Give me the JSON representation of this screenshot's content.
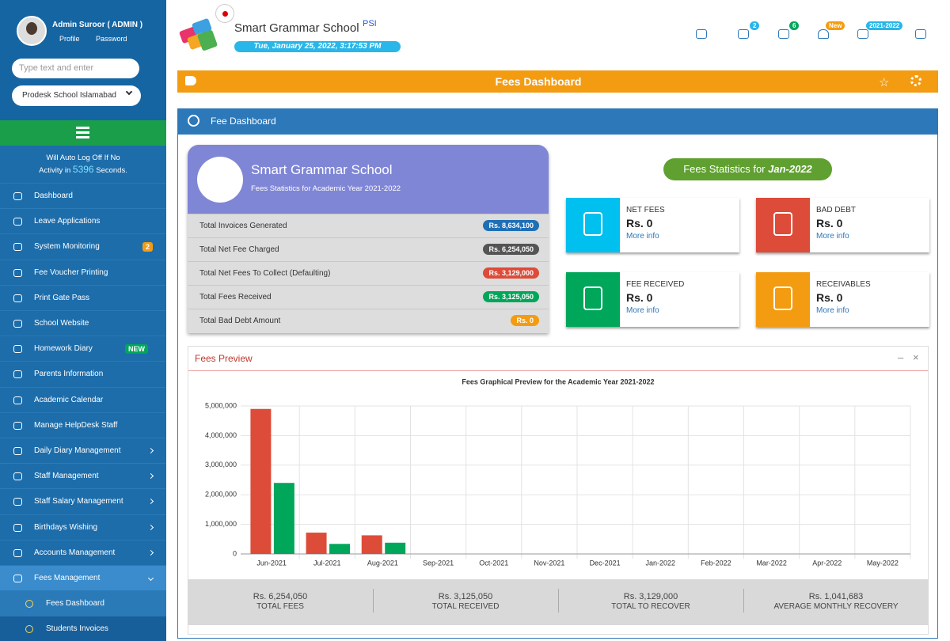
{
  "sidebar": {
    "user": {
      "name": "Admin Suroor ( ADMIN )",
      "profile": "Profile",
      "password": "Password"
    },
    "search_placeholder": "Type text and enter",
    "school_select": "Prodesk School Islamabad",
    "auto_logoff": {
      "line1": "Will Auto Log Off If No",
      "line2": "Activity in",
      "seconds": "5396",
      "line3": "Seconds."
    },
    "menu": [
      {
        "label": "Dashboard"
      },
      {
        "label": "Leave Applications"
      },
      {
        "label": "System Monitoring",
        "badge": "2",
        "badge_color": "#f39c12"
      },
      {
        "label": "Fee Voucher Printing"
      },
      {
        "label": "Print Gate Pass"
      },
      {
        "label": "School Website"
      },
      {
        "label": "Homework Diary",
        "badge": "NEW",
        "badge_color": "#00a65a"
      },
      {
        "label": "Parents Information"
      },
      {
        "label": "Academic Calendar"
      },
      {
        "label": "Manage HelpDesk Staff"
      },
      {
        "label": "Daily Diary Management",
        "expandable": true
      },
      {
        "label": "Staff Management",
        "expandable": true
      },
      {
        "label": "Staff Salary Management",
        "expandable": true
      },
      {
        "label": "Birthdays Wishing",
        "expandable": true
      },
      {
        "label": "Accounts Management",
        "expandable": true
      },
      {
        "label": "Fees Management",
        "expandable": true,
        "open": true
      }
    ],
    "submenu": [
      "Fees Dashboard",
      "Students Invoices"
    ]
  },
  "header": {
    "school": "Smart Grammar School",
    "tag": "PSI",
    "datetime": "Tue, January 25, 2022, 3:17:53 PM",
    "badges": [
      "2",
      "6",
      "New",
      "2021-2022"
    ]
  },
  "page_title": "Fees Dashboard",
  "panel_title": "Fee Dashboard",
  "summary_card": {
    "school": "Smart Grammar School",
    "subtitle": "Fees Statistics for Academic Year 2021-2022",
    "rows": [
      {
        "label": "Total Invoices Generated",
        "value": "Rs. 8,634,100",
        "color": "#1f6fb5"
      },
      {
        "label": "Total Net Fee Charged",
        "value": "Rs. 6,254,050",
        "color": "#555555"
      },
      {
        "label": "Total Net Fees To Collect (Defaulting)",
        "value": "Rs. 3,129,000",
        "color": "#dd4b39"
      },
      {
        "label": "Total Fees Received",
        "value": "Rs. 3,125,050",
        "color": "#00a65a"
      },
      {
        "label": "Total Bad Debt Amount",
        "value": "Rs. 0",
        "color": "#f39c12"
      }
    ]
  },
  "stats": {
    "heading": "Fees Statistics for",
    "period": "Jan-2022",
    "boxes": [
      {
        "label": "NET FEES",
        "value": "Rs. 0",
        "link": "More info",
        "color": "#00c0ef"
      },
      {
        "label": "BAD DEBT",
        "value": "Rs. 0",
        "link": "More info",
        "color": "#dd4b39"
      },
      {
        "label": "FEE RECEIVED",
        "value": "Rs. 0",
        "link": "More info",
        "color": "#00a65a"
      },
      {
        "label": "RECEIVABLES",
        "value": "Rs. 0",
        "link": "More info",
        "color": "#f39c12"
      }
    ]
  },
  "fees_preview": {
    "title": "Fees Preview",
    "totals": [
      {
        "value": "Rs. 6,254,050",
        "label": "TOTAL FEES"
      },
      {
        "value": "Rs. 3,125,050",
        "label": "TOTAL RECEIVED"
      },
      {
        "value": "Rs. 3,129,000",
        "label": "TOTAL TO RECOVER"
      },
      {
        "value": "Rs. 1,041,683",
        "label": "AVERAGE MONTHLY RECOVERY"
      }
    ]
  },
  "chart_data": {
    "type": "bar",
    "title": "Fees Graphical Preview for the Academic Year 2021-2022",
    "categories": [
      "Jun-2021",
      "Jul-2021",
      "Aug-2021",
      "Sep-2021",
      "Oct-2021",
      "Nov-2021",
      "Dec-2021",
      "Jan-2022",
      "Feb-2022",
      "Mar-2022",
      "Apr-2022",
      "May-2022"
    ],
    "series": [
      {
        "color": "#dd4b39",
        "values": [
          4900000,
          720000,
          630000,
          0,
          0,
          0,
          0,
          0,
          0,
          0,
          0,
          0
        ]
      },
      {
        "color": "#00a65a",
        "values": [
          2400000,
          340000,
          380000,
          0,
          0,
          0,
          0,
          0,
          0,
          0,
          0,
          0
        ]
      }
    ],
    "ylim": [
      0,
      5000000
    ],
    "yticks": [
      0,
      {
        "value": 1000000,
        "label": "1,000,000"
      },
      {
        "value": 2000000,
        "label": "2,000,000"
      },
      {
        "value": 3000000,
        "label": "3,000,000"
      },
      {
        "value": 4000000,
        "label": "4,000,000"
      },
      {
        "value": 5000000,
        "label": "5,000,000"
      }
    ],
    "grid": true
  }
}
